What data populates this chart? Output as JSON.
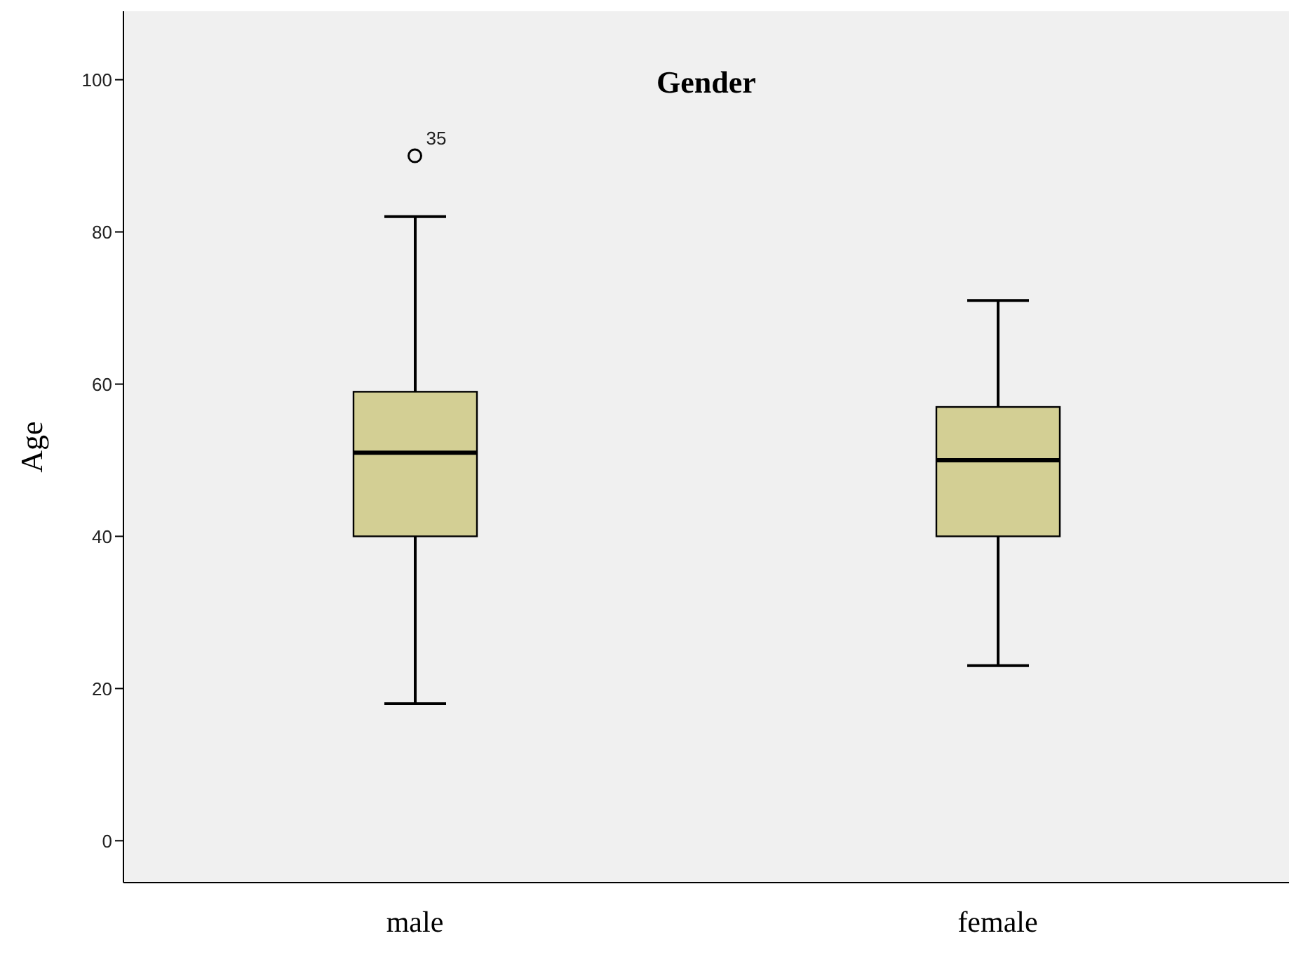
{
  "chart_data": {
    "type": "box",
    "title": "Gender",
    "ylabel": "Age",
    "categories": [
      "male",
      "female"
    ],
    "boxes": [
      {
        "low": 18,
        "q1": 40,
        "median": 51,
        "q3": 59,
        "high": 82,
        "outliers": [
          90
        ]
      },
      {
        "low": 23,
        "q1": 40,
        "median": 50,
        "q3": 57,
        "high": 71
      }
    ],
    "color": "#d3cf94",
    "ylim": [
      -5.5,
      109
    ],
    "yticks": [
      0,
      20,
      40,
      60,
      80,
      100
    ],
    "annotations": [
      "35"
    ],
    "grid": false
  }
}
